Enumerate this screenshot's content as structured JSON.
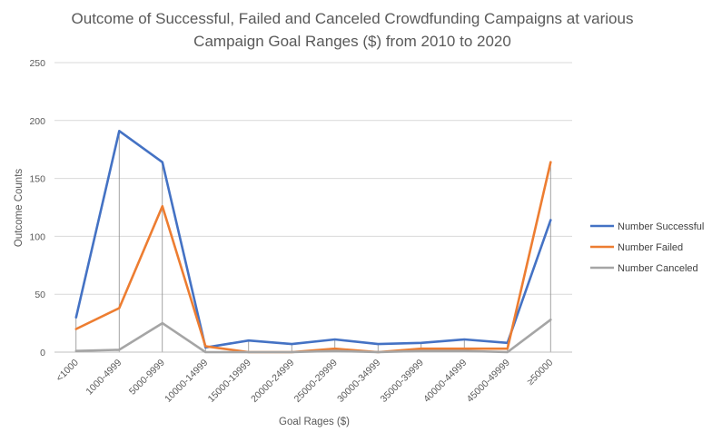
{
  "chart_data": {
    "type": "line",
    "title_lines": [
      "Outcome of Successful, Failed and Canceled Crowdfunding Campaigns at various",
      "Campaign Goal Ranges ($) from 2010 to 2020"
    ],
    "xlabel": "Goal Rages ($)",
    "ylabel": "Outcome Counts",
    "ylim": [
      0,
      250
    ],
    "yticks": [
      0,
      50,
      100,
      150,
      200,
      250
    ],
    "grid": true,
    "legend_position": "right",
    "categories": [
      "<1000",
      "1000-4999",
      "5000-9999",
      "10000-14999",
      "15000-19999",
      "20000-24999",
      "25000-29999",
      "30000-34999",
      "35000-39999",
      "40000-44999",
      "45000-49999",
      "≥50000"
    ],
    "series": [
      {
        "name": "Number Successful",
        "color": "#4472c4",
        "values": [
          30,
          191,
          164,
          4,
          10,
          7,
          11,
          7,
          8,
          11,
          8,
          114
        ]
      },
      {
        "name": "Number Failed",
        "color": "#ed7d31",
        "values": [
          20,
          38,
          126,
          5,
          0,
          0,
          3,
          0,
          3,
          3,
          3,
          164
        ]
      },
      {
        "name": "Number Canceled",
        "color": "#a5a5a5",
        "values": [
          1,
          2,
          25,
          0,
          0,
          0,
          1,
          0,
          1,
          1,
          0,
          28
        ]
      }
    ],
    "drop_lines": true
  }
}
